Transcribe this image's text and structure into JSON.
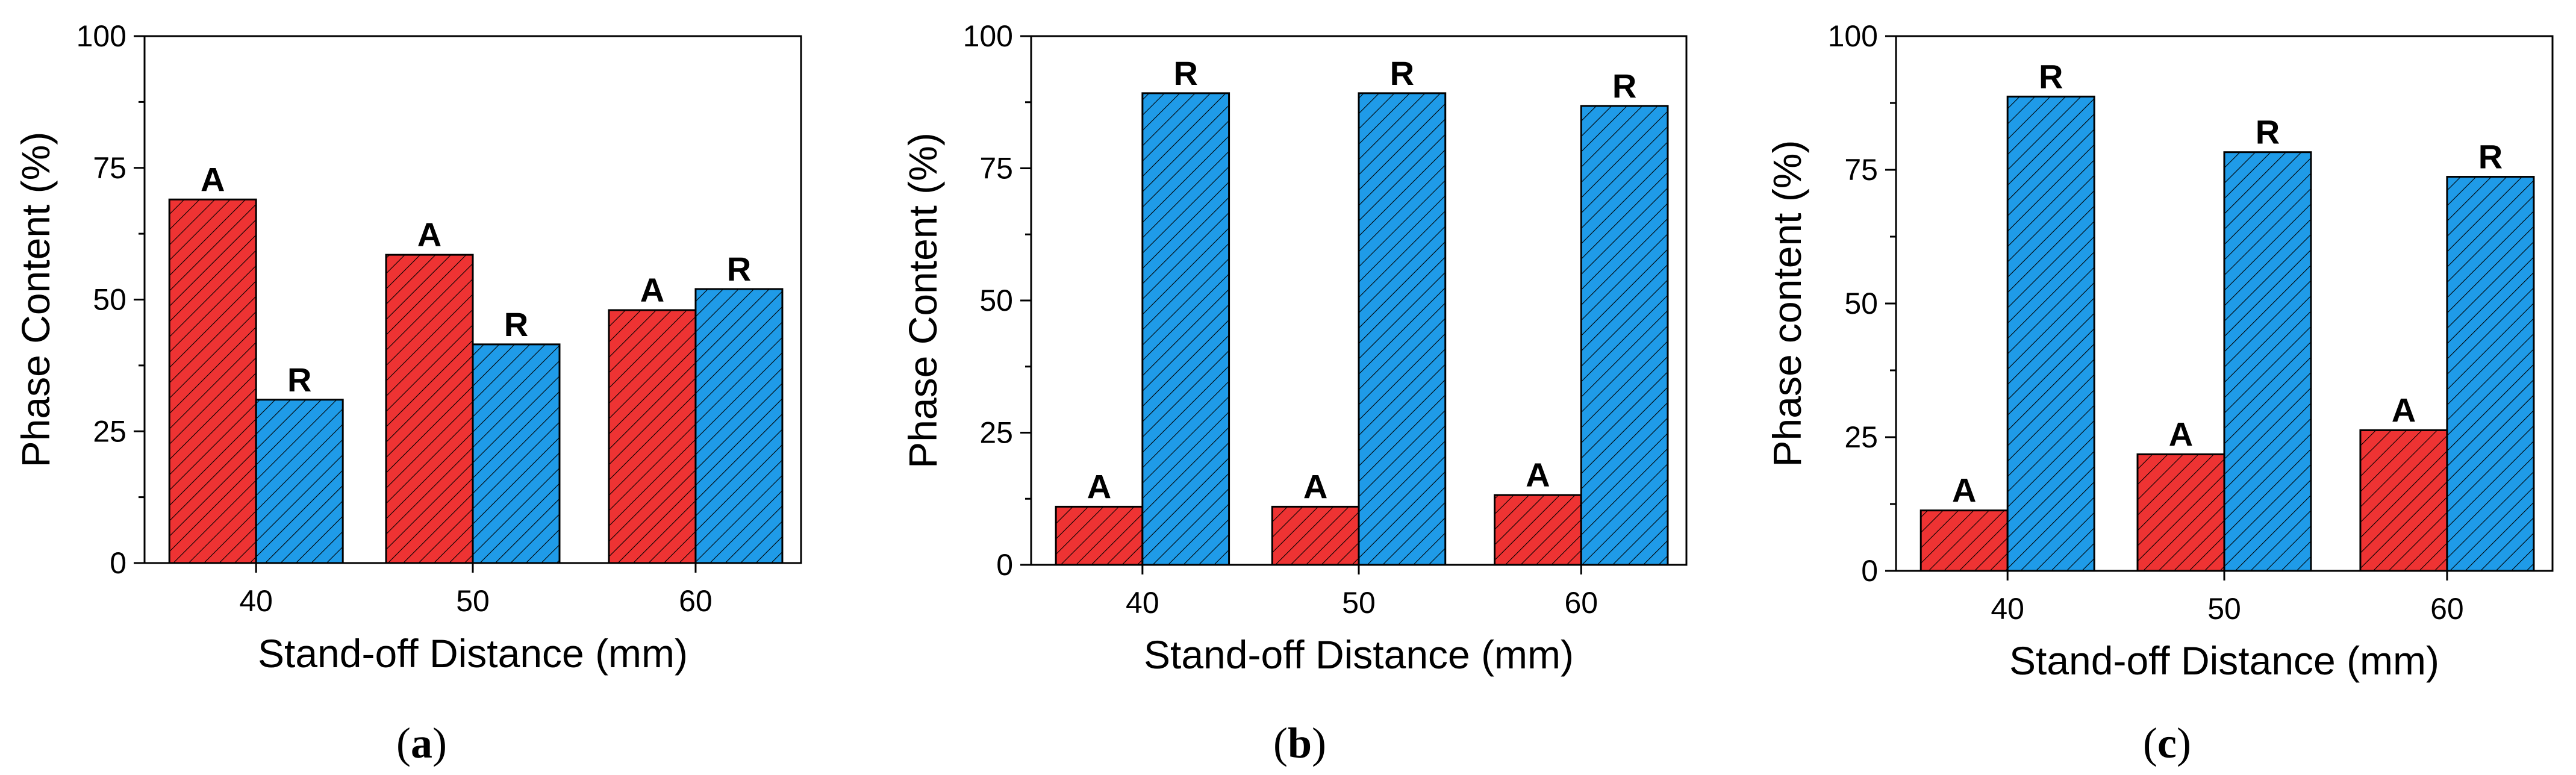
{
  "colors": {
    "series_a": "#ee3333",
    "series_r": "#1f9be8",
    "axis": "#000000",
    "hatch": "#000000",
    "background": "#ffffff"
  },
  "chart_data": [
    {
      "type": "bar",
      "panel_label": "a",
      "xlabel": "Stand-off Distance (mm)",
      "ylabel": "Phase Content (%)",
      "ylim": [
        0,
        100
      ],
      "yticks": [
        "0",
        "25",
        "50",
        "75",
        "100"
      ],
      "categories": [
        "40",
        "50",
        "60"
      ],
      "series": [
        {
          "name": "A",
          "color_key": "series_a",
          "values": [
            69,
            58.5,
            48
          ]
        },
        {
          "name": "R",
          "color_key": "series_r",
          "values": [
            31,
            41.5,
            52
          ]
        }
      ]
    },
    {
      "type": "bar",
      "panel_label": "b",
      "xlabel": "Stand-off Distance (mm)",
      "ylabel": "Phase Content (%)",
      "ylim": [
        0,
        100
      ],
      "yticks": [
        "0",
        "25",
        "50",
        "75",
        "100"
      ],
      "categories": [
        "40",
        "50",
        "60"
      ],
      "series": [
        {
          "name": "A",
          "color_key": "series_a",
          "values": [
            11,
            11,
            13.2
          ]
        },
        {
          "name": "R",
          "color_key": "series_r",
          "values": [
            89.2,
            89.2,
            86.8
          ]
        }
      ]
    },
    {
      "type": "bar",
      "panel_label": "c",
      "xlabel": "Stand-off Distance (mm)",
      "ylabel": "Phase content (%)",
      "ylim": [
        0,
        100
      ],
      "yticks": [
        "0",
        "25",
        "50",
        "75",
        "100"
      ],
      "categories": [
        "40",
        "50",
        "60"
      ],
      "series": [
        {
          "name": "A",
          "color_key": "series_a",
          "values": [
            11.3,
            21.8,
            26.3
          ]
        },
        {
          "name": "R",
          "color_key": "series_r",
          "values": [
            88.7,
            78.3,
            73.7
          ]
        }
      ]
    }
  ]
}
